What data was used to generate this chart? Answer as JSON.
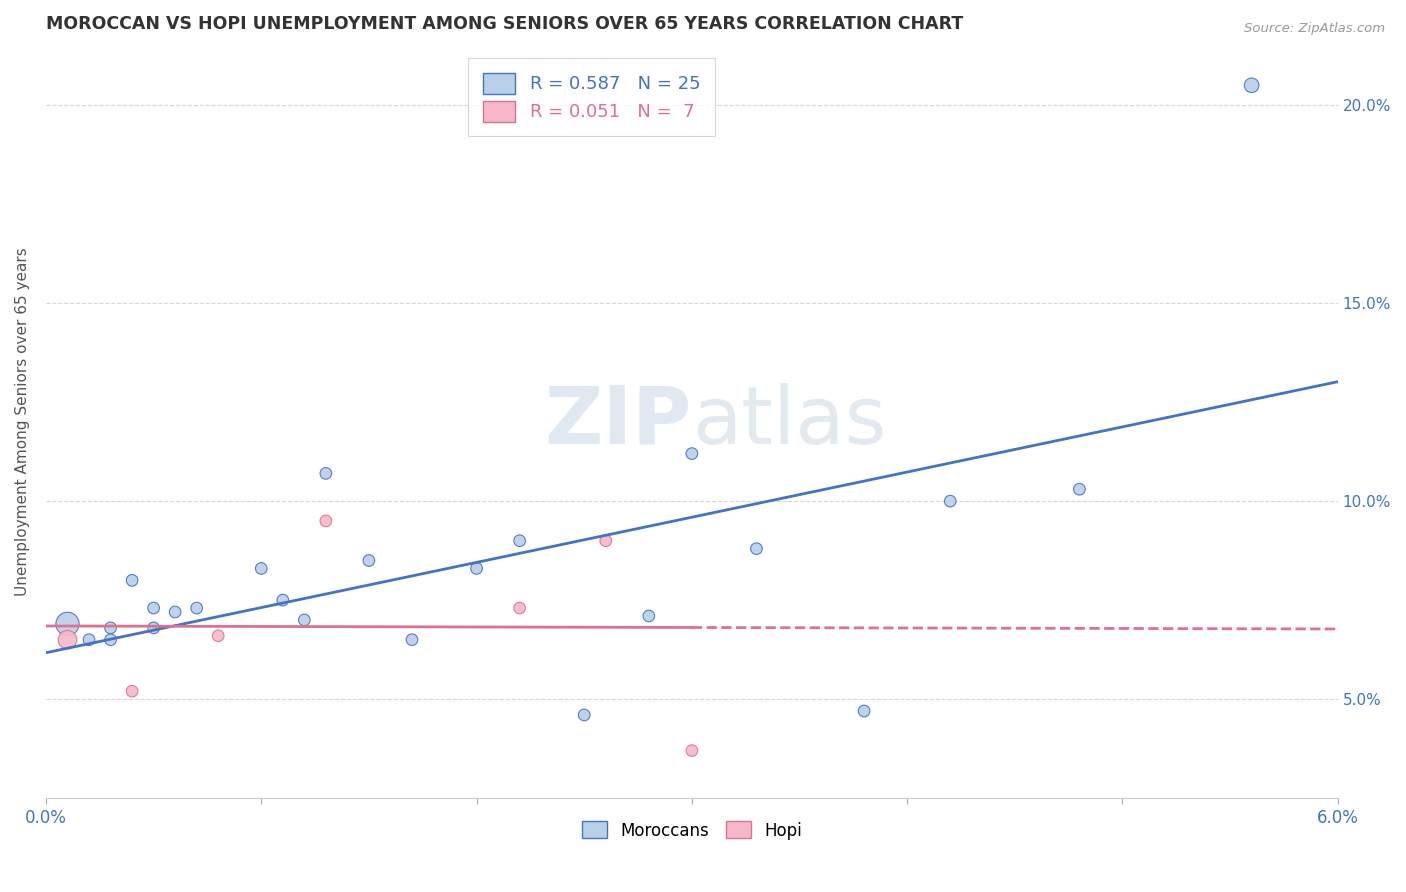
{
  "title": "MOROCCAN VS HOPI UNEMPLOYMENT AMONG SENIORS OVER 65 YEARS CORRELATION CHART",
  "source": "Source: ZipAtlas.com",
  "ylabel": "Unemployment Among Seniors over 65 years",
  "moroccan_r": 0.587,
  "moroccan_n": 25,
  "hopi_r": 0.051,
  "hopi_n": 7,
  "moroccan_color": "#b8d0e8",
  "moroccan_line_color": "#4472c4",
  "hopi_color": "#f4b8c8",
  "hopi_line_color": "#e07090",
  "watermark": "ZIPatlas",
  "moroccan_x": [
    0.001,
    0.002,
    0.003,
    0.003,
    0.004,
    0.005,
    0.005,
    0.006,
    0.007,
    0.01,
    0.011,
    0.012,
    0.013,
    0.015,
    0.017,
    0.02,
    0.022,
    0.025,
    0.028,
    0.03,
    0.033,
    0.038,
    0.042,
    0.048,
    0.056
  ],
  "moroccan_y": [
    0.069,
    0.065,
    0.065,
    0.068,
    0.08,
    0.073,
    0.068,
    0.072,
    0.073,
    0.083,
    0.075,
    0.07,
    0.107,
    0.085,
    0.065,
    0.083,
    0.09,
    0.046,
    0.071,
    0.112,
    0.088,
    0.047,
    0.1,
    0.103,
    0.205
  ],
  "moroccan_sizes": [
    280,
    70,
    70,
    70,
    70,
    70,
    70,
    70,
    70,
    70,
    70,
    70,
    70,
    70,
    70,
    70,
    70,
    70,
    70,
    70,
    70,
    70,
    70,
    70,
    110
  ],
  "hopi_x": [
    0.001,
    0.004,
    0.008,
    0.013,
    0.022,
    0.026,
    0.03
  ],
  "hopi_y": [
    0.065,
    0.052,
    0.066,
    0.095,
    0.073,
    0.09,
    0.037
  ],
  "hopi_sizes": [
    180,
    70,
    70,
    70,
    70,
    70,
    70
  ],
  "xlim": [
    0.0,
    0.06
  ],
  "ylim": [
    0.025,
    0.215
  ],
  "yticks": [
    0.05,
    0.1,
    0.15,
    0.2
  ],
  "ytick_labels": [
    "5.0%",
    "10.0%",
    "15.0%",
    "20.0%"
  ],
  "xticks": [
    0.0,
    0.01,
    0.02,
    0.03,
    0.04,
    0.05,
    0.06
  ],
  "xtick_labels_show": [
    "0.0%",
    "",
    "",
    "",
    "",
    "",
    "6.0%"
  ],
  "background_color": "#ffffff",
  "grid_color": "#cccccc"
}
